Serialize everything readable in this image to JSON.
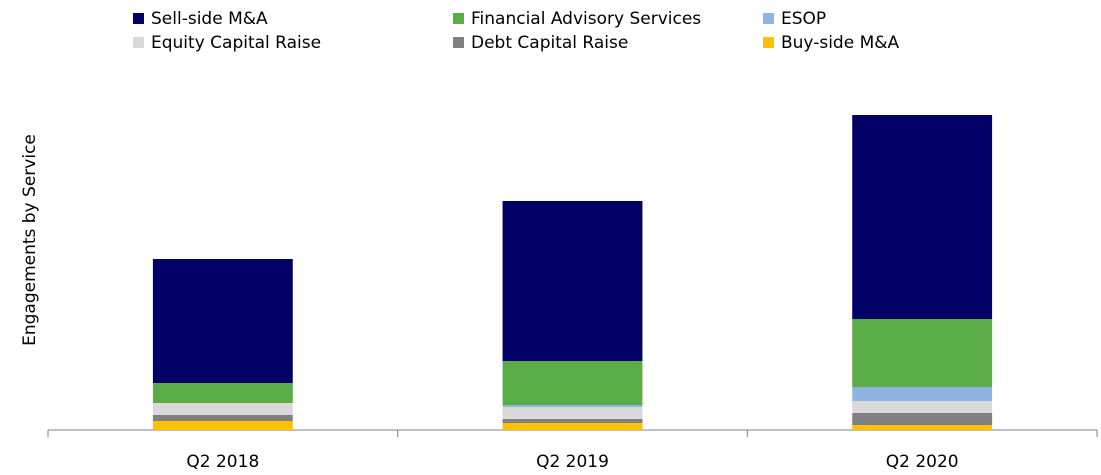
{
  "chart_data": {
    "type": "stacked_bar",
    "y_label": "Engagements by Service",
    "categories": [
      "Q2 2018",
      "Q2 2019",
      "Q2 2020"
    ],
    "series": [
      {
        "name": "Sell-side M&A",
        "color": "#000066",
        "values": [
          124,
          160,
          204
        ]
      },
      {
        "name": "Financial Advisory Services",
        "color": "#5aad46",
        "values": [
          20,
          44,
          68
        ]
      },
      {
        "name": "ESOP",
        "color": "#8db4e2",
        "values": [
          0,
          2,
          14
        ]
      },
      {
        "name": "Equity Capital Raise",
        "color": "#d9d9d9",
        "values": [
          12,
          12,
          12
        ]
      },
      {
        "name": "Debt Capital Raise",
        "color": "#808080",
        "values": [
          6,
          4,
          12
        ]
      },
      {
        "name": "Buy-side M&A",
        "color": "#ffc000",
        "values": [
          9,
          7,
          5
        ]
      }
    ],
    "ylim": [
      0,
      330
    ],
    "legend": "top"
  }
}
